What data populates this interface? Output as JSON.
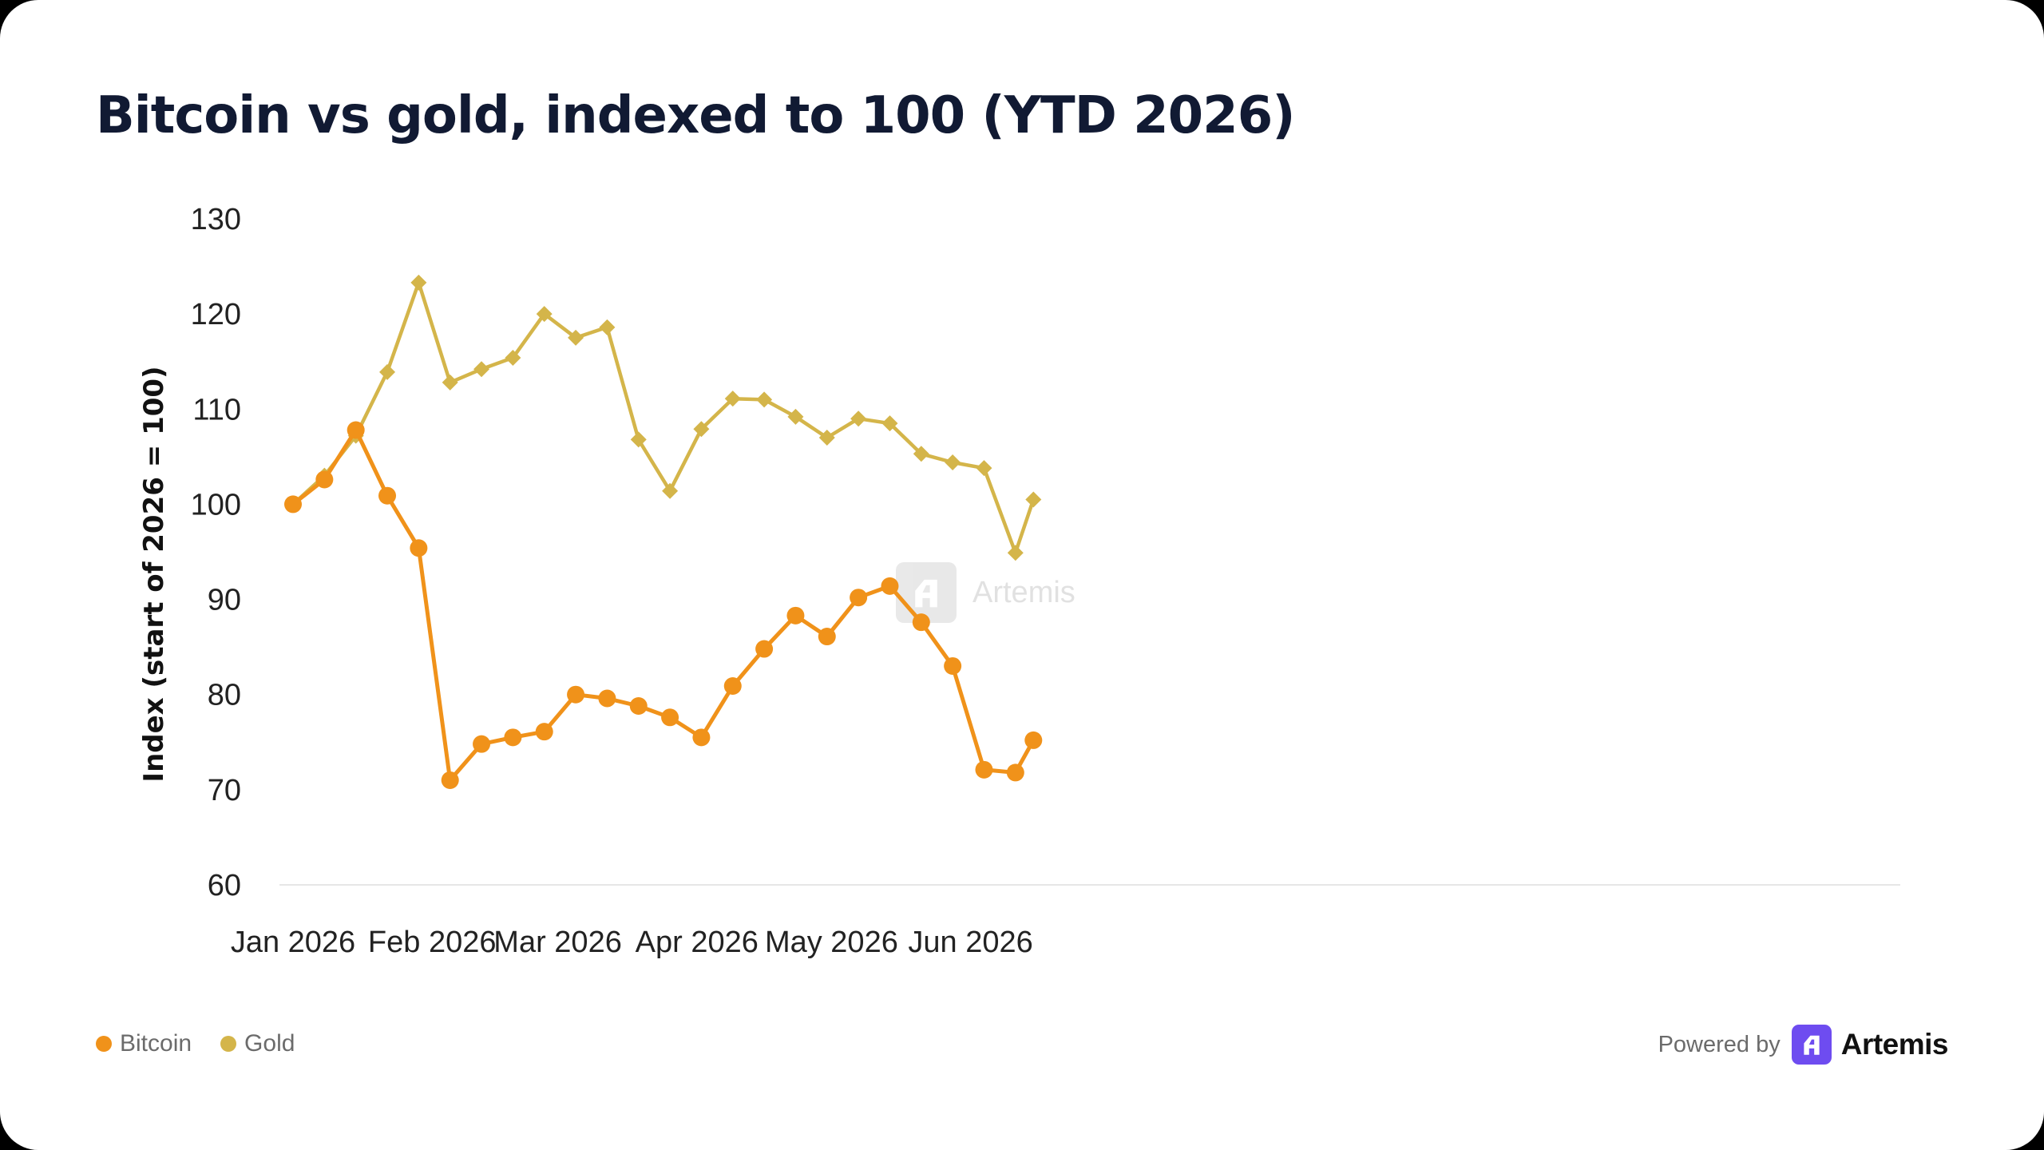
{
  "title": "Bitcoin vs gold, indexed to 100 (YTD 2026)",
  "legend": [
    {
      "label": "Bitcoin",
      "color": "#f0921a"
    },
    {
      "label": "Gold",
      "color": "#d4b54a"
    }
  ],
  "footer": {
    "powered_by": "Powered by",
    "brand": "Artemis",
    "brand_color": "#6e4cf0"
  },
  "watermark": "Artemis",
  "chart_data": {
    "type": "line",
    "title": "Bitcoin vs gold, indexed to 100 (YTD 2026)",
    "xlabel": "",
    "ylabel": "Index (start of 2026 = 100)",
    "ylim": [
      60,
      130
    ],
    "yticks": [
      60,
      70,
      80,
      90,
      100,
      110,
      120,
      130
    ],
    "x_tick_labels": [
      {
        "label": "Jan 2026",
        "date": "2026-01-01"
      },
      {
        "label": "Feb 2026",
        "date": "2026-02-01"
      },
      {
        "label": "Mar 2026",
        "date": "2026-03-01"
      },
      {
        "label": "Apr 2026",
        "date": "2026-04-01"
      },
      {
        "label": "May 2026",
        "date": "2026-05-01"
      },
      {
        "label": "Jun 2026",
        "date": "2026-06-01"
      }
    ],
    "x": [
      "2026-01-01",
      "2026-01-08",
      "2026-01-15",
      "2026-01-22",
      "2026-01-29",
      "2026-02-05",
      "2026-02-12",
      "2026-02-19",
      "2026-02-26",
      "2026-03-05",
      "2026-03-12",
      "2026-03-19",
      "2026-03-26",
      "2026-04-02",
      "2026-04-09",
      "2026-04-16",
      "2026-04-23",
      "2026-04-30",
      "2026-05-07",
      "2026-05-14",
      "2026-05-21",
      "2026-05-28",
      "2026-06-04",
      "2026-06-11",
      "2026-06-15"
    ],
    "grid": false,
    "legend_position": "bottom-left",
    "series": [
      {
        "name": "Bitcoin",
        "color": "#f0921a",
        "marker": "circle",
        "values": [
          100.0,
          102.6,
          107.8,
          100.9,
          95.4,
          71.0,
          74.8,
          75.5,
          76.1,
          80.0,
          79.6,
          78.8,
          77.6,
          75.5,
          80.9,
          84.8,
          88.3,
          86.1,
          90.2,
          91.4,
          87.6,
          83.0,
          72.1,
          71.8,
          75.2
        ]
      },
      {
        "name": "Gold",
        "color": "#d4b54a",
        "marker": "diamond",
        "values": [
          100.0,
          103.0,
          107.2,
          113.9,
          123.3,
          112.8,
          114.2,
          115.4,
          120.0,
          117.5,
          118.6,
          106.8,
          101.4,
          107.9,
          111.1,
          111.0,
          109.2,
          107.0,
          109.0,
          108.5,
          105.3,
          104.4,
          103.8,
          94.9,
          100.5
        ]
      }
    ]
  }
}
